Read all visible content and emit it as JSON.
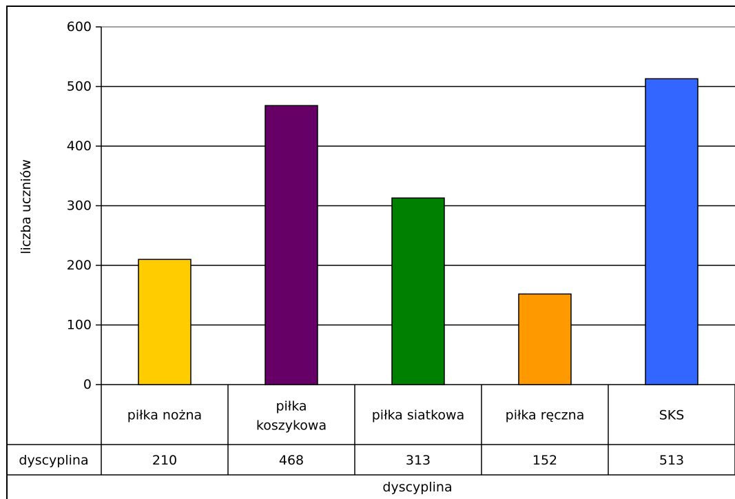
{
  "chart_data": {
    "type": "bar",
    "title": "",
    "xlabel": "dyscyplina",
    "ylabel": "liczba uczniów",
    "ylim": [
      0,
      600
    ],
    "yticks": [
      0,
      100,
      200,
      300,
      400,
      500,
      600
    ],
    "grid": true,
    "categories": [
      "piłka nożna",
      "piłka koszykowa",
      "piłka siatkowa",
      "piłka ręczna",
      "SKS"
    ],
    "values": [
      210,
      468,
      313,
      152,
      513
    ],
    "bar_colors": [
      "#FFCC00",
      "#660066",
      "#008000",
      "#FF9900",
      "#3366FF"
    ],
    "data_table": {
      "row_label": "dyscyplina",
      "values": [
        "210",
        "468",
        "313",
        "152",
        "513"
      ]
    }
  }
}
